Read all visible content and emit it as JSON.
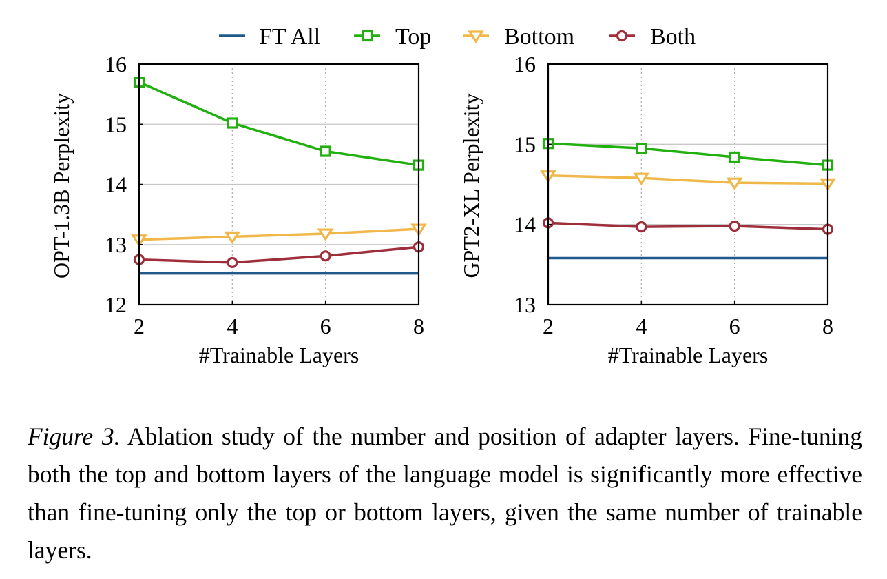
{
  "legend": [
    {
      "label": "FT All",
      "color": "#1f5a8a",
      "marker": "none"
    },
    {
      "label": "Top",
      "color": "#22b010",
      "marker": "square"
    },
    {
      "label": "Bottom",
      "color": "#f0b84a",
      "marker": "triangle-down"
    },
    {
      "label": "Both",
      "color": "#9e2f3a",
      "marker": "circle"
    }
  ],
  "chart_data": [
    {
      "type": "line",
      "xlabel": "#Trainable Layers",
      "ylabel": "OPT-1.3B Perplexity",
      "x": [
        2,
        4,
        6,
        8
      ],
      "xticks": [
        "2",
        "4",
        "6",
        "8"
      ],
      "yticks": [
        "12",
        "13",
        "14",
        "15",
        "16"
      ],
      "xlim": [
        2,
        8
      ],
      "ylim": [
        12,
        16
      ],
      "grid": true,
      "series": [
        {
          "name": "FT All",
          "values": [
            12.52,
            12.52,
            12.52,
            12.52
          ]
        },
        {
          "name": "Top",
          "values": [
            15.7,
            15.02,
            14.55,
            14.32
          ]
        },
        {
          "name": "Bottom",
          "values": [
            13.08,
            13.13,
            13.18,
            13.26
          ]
        },
        {
          "name": "Both",
          "values": [
            12.75,
            12.7,
            12.81,
            12.96
          ]
        }
      ]
    },
    {
      "type": "line",
      "xlabel": "#Trainable Layers",
      "ylabel": "GPT2-XL Perplexity",
      "x": [
        2,
        4,
        6,
        8
      ],
      "xticks": [
        "2",
        "4",
        "6",
        "8"
      ],
      "yticks": [
        "13",
        "14",
        "15",
        "16"
      ],
      "xlim": [
        2,
        8
      ],
      "ylim": [
        13,
        16
      ],
      "grid": true,
      "series": [
        {
          "name": "FT All",
          "values": [
            13.58,
            13.58,
            13.58,
            13.58
          ]
        },
        {
          "name": "Top",
          "values": [
            15.01,
            14.95,
            14.84,
            14.74
          ]
        },
        {
          "name": "Bottom",
          "values": [
            14.61,
            14.58,
            14.52,
            14.51
          ]
        },
        {
          "name": "Both",
          "values": [
            14.02,
            13.97,
            13.98,
            13.94
          ]
        }
      ]
    }
  ],
  "caption": {
    "label": "Figure 3.",
    "text": " Ablation study of the number and position of adapter layers. Fine-tuning both the top and bottom layers of the language model is significantly more effective than fine-tuning only the top or bottom layers, given the same number of trainable layers."
  }
}
